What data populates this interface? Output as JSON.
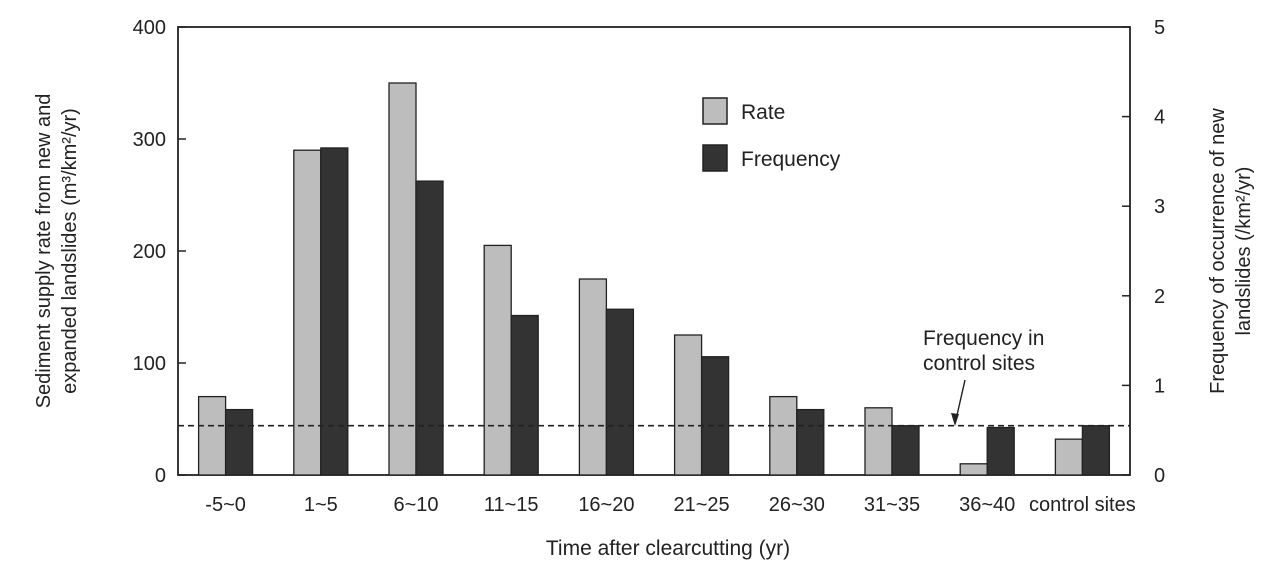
{
  "chart_data": {
    "type": "bar",
    "xlabel": "Time after clearcutting (yr)",
    "ylabel_left": [
      "Sediment supply rate from new and",
      "expanded landslides (m³/km²/yr)"
    ],
    "ylabel_right": [
      "Frequency of occurrence of new",
      "landslides (/km²/yr)"
    ],
    "categories": [
      "-5~0",
      "1~5",
      "6~10",
      "11~15",
      "16~20",
      "21~25",
      "26~30",
      "31~35",
      "36~40",
      "control sites"
    ],
    "ylim_left": [
      0,
      400
    ],
    "yticks_left": [
      "0",
      "100",
      "200",
      "300",
      "400"
    ],
    "ylim_right": [
      0,
      5
    ],
    "yticks_right": [
      "0",
      "1",
      "2",
      "3",
      "4",
      "5"
    ],
    "series": [
      {
        "name": "Rate",
        "axis": "left",
        "color": "#bdbdbd",
        "values": [
          70,
          290,
          350,
          205,
          175,
          125,
          70,
          60,
          10,
          32
        ]
      },
      {
        "name": "Frequency",
        "axis": "right",
        "color": "#333333",
        "values": [
          0.73,
          3.65,
          3.28,
          1.78,
          1.85,
          1.32,
          0.73,
          0.55,
          0.53,
          0.55
        ]
      }
    ],
    "reference_line": {
      "axis": "right",
      "value": 0.55,
      "style": "dashed"
    },
    "annotation": {
      "lines": [
        "Frequency in",
        "control sites"
      ]
    },
    "legend": {
      "placement": "top-center"
    },
    "grid": false
  }
}
